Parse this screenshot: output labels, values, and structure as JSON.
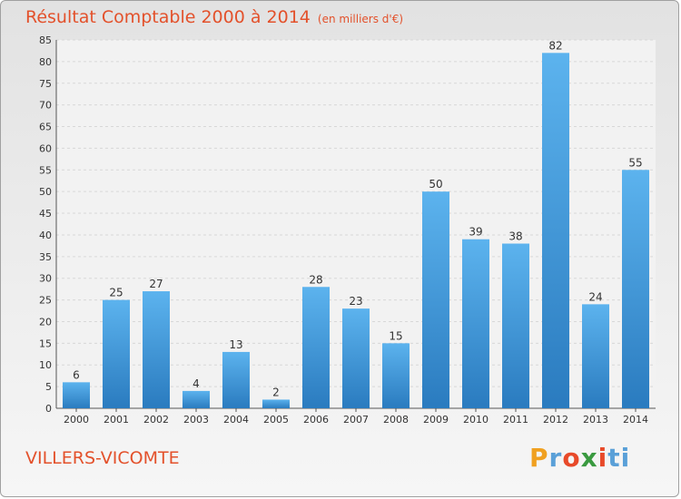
{
  "chart_data": {
    "type": "bar",
    "title": "Résultat Comptable 2000 à 2014",
    "subtitle": "(en milliers d'€)",
    "categories": [
      "2000",
      "2001",
      "2002",
      "2003",
      "2004",
      "2005",
      "2006",
      "2007",
      "2008",
      "2009",
      "2010",
      "2011",
      "2012",
      "2013",
      "2014"
    ],
    "values": [
      6,
      25,
      27,
      4,
      13,
      2,
      28,
      23,
      15,
      50,
      39,
      38,
      82,
      24,
      55
    ],
    "ylim": [
      0,
      85
    ],
    "yticks": [
      0,
      5,
      10,
      15,
      20,
      25,
      30,
      35,
      40,
      45,
      50,
      55,
      60,
      65,
      70,
      75,
      80,
      85
    ],
    "grid": true,
    "xlabel": "",
    "ylabel": ""
  },
  "commune": "VILLERS-VICOMTE",
  "logo": {
    "letters": [
      "P",
      "r",
      "o",
      "x",
      "i",
      "t",
      "i"
    ],
    "colors": [
      "#f0a020",
      "#5aa0d8",
      "#e84a2a",
      "#3a9a40",
      "#e84a2a",
      "#5aa0d8",
      "#5aa0d8"
    ]
  },
  "colors": {
    "title": "#e3512b",
    "bar_light": "#5cb3ee",
    "bar_dark": "#2a7bbf",
    "grid": "#d8d8d8"
  }
}
